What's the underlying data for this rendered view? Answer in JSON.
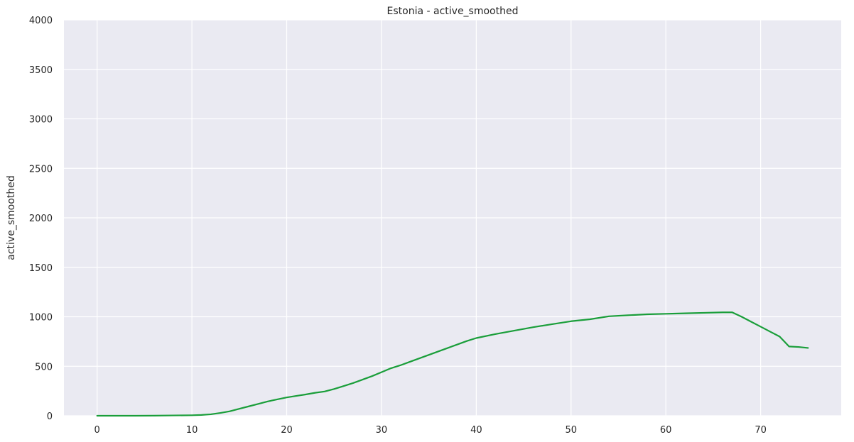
{
  "chart_data": {
    "type": "line",
    "title": "Estonia - active_smoothed",
    "xlabel": "",
    "ylabel": "active_smoothed",
    "xlim": [
      -3.5,
      78.5
    ],
    "ylim": [
      0,
      4000
    ],
    "x_ticks": [
      0,
      10,
      20,
      30,
      40,
      50,
      60,
      70
    ],
    "y_ticks": [
      0,
      500,
      1000,
      1500,
      2000,
      2500,
      3000,
      3500,
      4000
    ],
    "grid": true,
    "colors": {
      "background": "#eaeaf2",
      "grid": "#ffffff",
      "line": "#1a9e3a"
    },
    "series": [
      {
        "x": [
          0,
          2,
          4,
          6,
          8,
          10,
          11,
          12,
          13,
          14,
          15,
          16,
          17,
          18,
          19,
          20,
          21,
          22,
          23,
          24,
          25,
          26,
          27,
          28,
          29,
          30,
          31,
          32,
          33,
          34,
          35,
          36,
          37,
          38,
          39,
          40,
          42,
          44,
          46,
          48,
          50,
          52,
          54,
          56,
          58,
          60,
          62,
          64,
          66,
          67,
          68,
          69,
          70,
          71,
          72,
          73,
          74,
          75
        ],
        "values": [
          0,
          0,
          0,
          1,
          3,
          5,
          8,
          15,
          28,
          45,
          70,
          95,
          120,
          145,
          165,
          185,
          200,
          215,
          232,
          245,
          270,
          300,
          330,
          365,
          400,
          440,
          480,
          510,
          545,
          580,
          615,
          650,
          685,
          720,
          755,
          785,
          825,
          860,
          895,
          925,
          955,
          975,
          1005,
          1015,
          1025,
          1030,
          1035,
          1040,
          1045,
          1045,
          1000,
          950,
          900,
          850,
          800,
          700,
          695,
          685
        ]
      }
    ]
  }
}
